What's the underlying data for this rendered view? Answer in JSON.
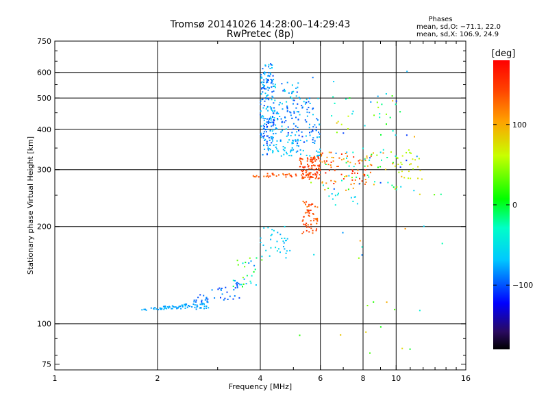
{
  "chart_data": {
    "type": "scatter",
    "title": "Tromsø 20141026 14:28:00–14:29:43",
    "subtitle": "RwPretec (8p)",
    "xlabel": "Frequency [MHz]",
    "ylabel": "Stationary phase Virtual Height [km]",
    "x_scale": "log",
    "y_scale": "log",
    "xlim": [
      1,
      16
    ],
    "ylim": [
      72,
      750
    ],
    "x_ticks": [
      "1",
      "2",
      "4",
      "6",
      "8",
      "10",
      "16"
    ],
    "y_ticks": [
      "75",
      "100",
      "200",
      "300",
      "400",
      "500",
      "600",
      "750"
    ],
    "x_tick_values": [
      1,
      2,
      4,
      6,
      8,
      10,
      16
    ],
    "y_tick_values": [
      75,
      100,
      200,
      300,
      400,
      500,
      600,
      750
    ],
    "grid_x_values": [
      2,
      4,
      6,
      8,
      10
    ],
    "grid_y_values": [
      100,
      200,
      300,
      400,
      500,
      600
    ],
    "grid": true,
    "phase_box": {
      "title": "Phases",
      "line1": "mean, sd,O: −71.1, 22.0",
      "line2": "mean, sd,X: 106.9, 24.9"
    },
    "colorbar": {
      "label": "[deg]",
      "range": [
        -180,
        180
      ],
      "ticks": [
        "100",
        "0",
        "−100"
      ],
      "tick_values": [
        100,
        0,
        -100
      ]
    },
    "series_clusters": [
      {
        "f": [
          1.8,
          2.9
        ],
        "h": [
          110,
          116
        ],
        "phase": [
          -85,
          -70
        ],
        "n": 80
      },
      {
        "f": [
          2.5,
          3.6
        ],
        "h": [
          116,
          135
        ],
        "phase": [
          -110,
          -80
        ],
        "n": 45
      },
      {
        "f": [
          3.3,
          4.1
        ],
        "h": [
          130,
          160
        ],
        "phase": [
          -100,
          60
        ],
        "n": 25
      },
      {
        "f": [
          4.0,
          4.9
        ],
        "h": [
          160,
          200
        ],
        "phase": [
          -80,
          -50
        ],
        "n": 35
      },
      {
        "f": [
          4.0,
          4.4
        ],
        "h": [
          330,
          640
        ],
        "phase": [
          -110,
          -60
        ],
        "n": 180
      },
      {
        "f": [
          4.3,
          5.2
        ],
        "h": [
          340,
          560
        ],
        "phase": [
          -110,
          -50
        ],
        "n": 110
      },
      {
        "f": [
          4.6,
          6.0
        ],
        "h": [
          330,
          350
        ],
        "phase": [
          -80,
          -60
        ],
        "n": 30
      },
      {
        "f": [
          5.0,
          6.0
        ],
        "h": [
          360,
          500
        ],
        "phase": [
          -110,
          -60
        ],
        "n": 70
      },
      {
        "f": [
          5.2,
          6.0
        ],
        "h": [
          280,
          330
        ],
        "phase": [
          130,
          160
        ],
        "n": 110
      },
      {
        "f": [
          5.3,
          5.9
        ],
        "h": [
          190,
          240
        ],
        "phase": [
          120,
          160
        ],
        "n": 60
      },
      {
        "f": [
          3.7,
          5.1
        ],
        "h": [
          284,
          292
        ],
        "phase": [
          120,
          150
        ],
        "n": 30
      },
      {
        "f": [
          6.0,
          8.5
        ],
        "h": [
          270,
          340
        ],
        "phase": [
          90,
          170
        ],
        "n": 70
      },
      {
        "f": [
          6.0,
          11.0
        ],
        "h": [
          260,
          350
        ],
        "phase": [
          -110,
          120
        ],
        "n": 60
      },
      {
        "f": [
          10.0,
          12.0
        ],
        "h": [
          280,
          340
        ],
        "phase": [
          40,
          80
        ],
        "n": 25
      },
      {
        "f": [
          6.2,
          11.0
        ],
        "h": [
          380,
          520
        ],
        "phase": [
          -110,
          120
        ],
        "n": 30
      },
      {
        "f": [
          6.3,
          8.0
        ],
        "h": [
          230,
          260
        ],
        "phase": [
          -70,
          -40
        ],
        "n": 12
      },
      {
        "f": [
          5.0,
          14.0
        ],
        "h": [
          80,
          620
        ],
        "phase": [
          -110,
          120
        ],
        "n": 45
      }
    ]
  }
}
